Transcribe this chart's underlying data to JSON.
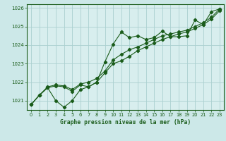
{
  "title": "Graphe pression niveau de la mer (hPa)",
  "fig_bg_color": "#cce8e8",
  "plot_bg_color": "#d8eeee",
  "line_color": "#1a5c1a",
  "grid_color": "#aad0d0",
  "text_color": "#1a5c1a",
  "xlim": [
    -0.5,
    23.5
  ],
  "ylim": [
    1020.5,
    1026.2
  ],
  "xticks": [
    0,
    1,
    2,
    3,
    4,
    5,
    6,
    7,
    8,
    9,
    10,
    11,
    12,
    13,
    14,
    15,
    16,
    17,
    18,
    19,
    20,
    21,
    22,
    23
  ],
  "yticks": [
    1021,
    1022,
    1023,
    1024,
    1025,
    1026
  ],
  "series1": [
    1020.8,
    1021.3,
    1021.7,
    1021.0,
    1020.65,
    1021.0,
    1021.6,
    1021.75,
    1022.0,
    1023.1,
    1024.05,
    1024.7,
    1024.4,
    1024.5,
    1024.3,
    1024.4,
    1024.75,
    1024.45,
    1024.45,
    1024.5,
    1025.35,
    1025.1,
    1025.8,
    1025.95
  ],
  "series2": [
    1020.8,
    1021.3,
    1021.7,
    1021.8,
    1021.75,
    1021.5,
    1021.85,
    1021.75,
    1022.0,
    1022.5,
    1023.0,
    1023.15,
    1023.4,
    1023.7,
    1023.9,
    1024.1,
    1024.3,
    1024.45,
    1024.6,
    1024.7,
    1024.9,
    1025.1,
    1025.4,
    1025.85
  ],
  "series3": [
    1020.8,
    1021.3,
    1021.75,
    1021.85,
    1021.8,
    1021.6,
    1021.9,
    1022.0,
    1022.2,
    1022.6,
    1023.2,
    1023.5,
    1023.75,
    1023.9,
    1024.1,
    1024.3,
    1024.5,
    1024.6,
    1024.7,
    1024.8,
    1025.0,
    1025.2,
    1025.5,
    1025.95
  ]
}
